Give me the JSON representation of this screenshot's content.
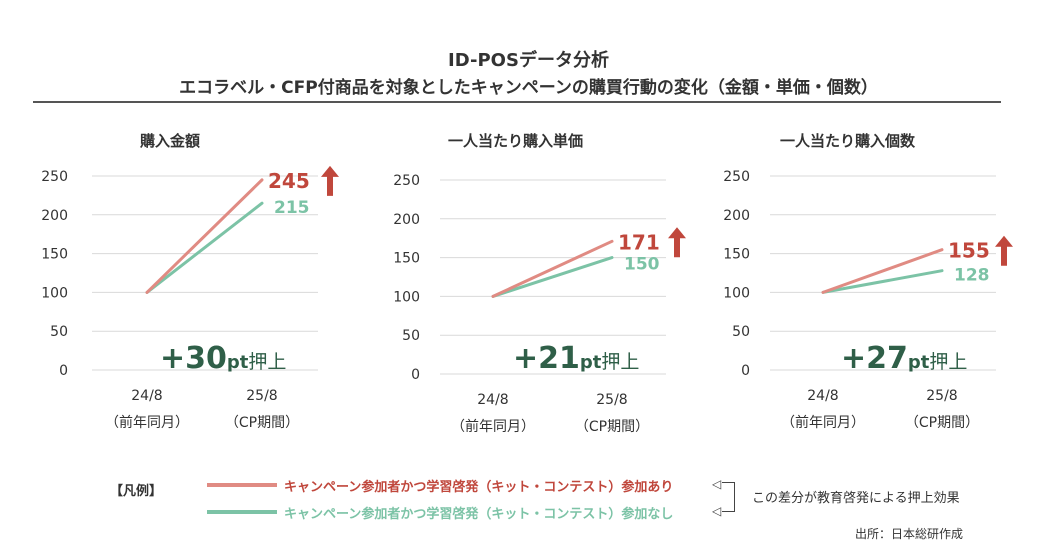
{
  "header": {
    "title1": "ID-POSデータ分析",
    "title2": "エコラベル・CFP付商品を対象としたキャンペーンの購買行動の変化（金額・単価・個数）"
  },
  "colors": {
    "with": "#e08b83",
    "without": "#7cc3a6",
    "with_label": "#c0473c",
    "without_label": "#7cc3a6",
    "arrow": "#c0473c",
    "lift": "#2f5f48"
  },
  "chart_data": [
    {
      "type": "line",
      "title": "購入金額",
      "categories": [
        "24/8",
        "25/8"
      ],
      "category_sub": [
        "（前年同月）",
        "（CP期間）"
      ],
      "ylim": [
        0,
        250
      ],
      "yticks": [
        0,
        50,
        100,
        150,
        200,
        250
      ],
      "series": [
        {
          "name": "キャンペーン参加者かつ学習啓発（キット・コンテスト）参加あり",
          "values": [
            100,
            245
          ]
        },
        {
          "name": "キャンペーン参加者かつ学習啓発（キット・コンテスト）参加なし",
          "values": [
            100,
            215
          ]
        }
      ],
      "end_labels": [
        "245",
        "215"
      ],
      "lift": {
        "value": "+30",
        "unit": "pt",
        "suffix": "押上"
      }
    },
    {
      "type": "line",
      "title": "一人当たり購入単価",
      "categories": [
        "24/8",
        "25/8"
      ],
      "category_sub": [
        "（前年同月）",
        "（CP期間）"
      ],
      "ylim": [
        0,
        250
      ],
      "yticks": [
        0,
        50,
        100,
        150,
        200,
        250
      ],
      "series": [
        {
          "name": "キャンペーン参加者かつ学習啓発（キット・コンテスト）参加あり",
          "values": [
            100,
            171
          ]
        },
        {
          "name": "キャンペーン参加者かつ学習啓発（キット・コンテスト）参加なし",
          "values": [
            100,
            150
          ]
        }
      ],
      "end_labels": [
        "171",
        "150"
      ],
      "lift": {
        "value": "+21",
        "unit": "pt",
        "suffix": "押上"
      }
    },
    {
      "type": "line",
      "title": "一人当たり購入個数",
      "categories": [
        "24/8",
        "25/8"
      ],
      "category_sub": [
        "（前年同月）",
        "（CP期間）"
      ],
      "ylim": [
        0,
        250
      ],
      "yticks": [
        0,
        50,
        100,
        150,
        200,
        250
      ],
      "series": [
        {
          "name": "キャンペーン参加者かつ学習啓発（キット・コンテスト）参加あり",
          "values": [
            100,
            155
          ]
        },
        {
          "name": "キャンペーン参加者かつ学習啓発（キット・コンテスト）参加なし",
          "values": [
            100,
            128
          ]
        }
      ],
      "end_labels": [
        "155",
        "128"
      ],
      "lift": {
        "value": "+27",
        "unit": "pt",
        "suffix": "押上"
      }
    }
  ],
  "legend": {
    "heading": "【凡例】",
    "with": "キャンペーン参加者かつ学習啓発（キット・コンテスト）参加あり",
    "without": "キャンペーン参加者かつ学習啓発（キット・コンテスト）参加なし",
    "arrow_glyph": "◁",
    "note": "この差分が教育啓発による押上効果"
  },
  "source": "出所：日本総研作成"
}
